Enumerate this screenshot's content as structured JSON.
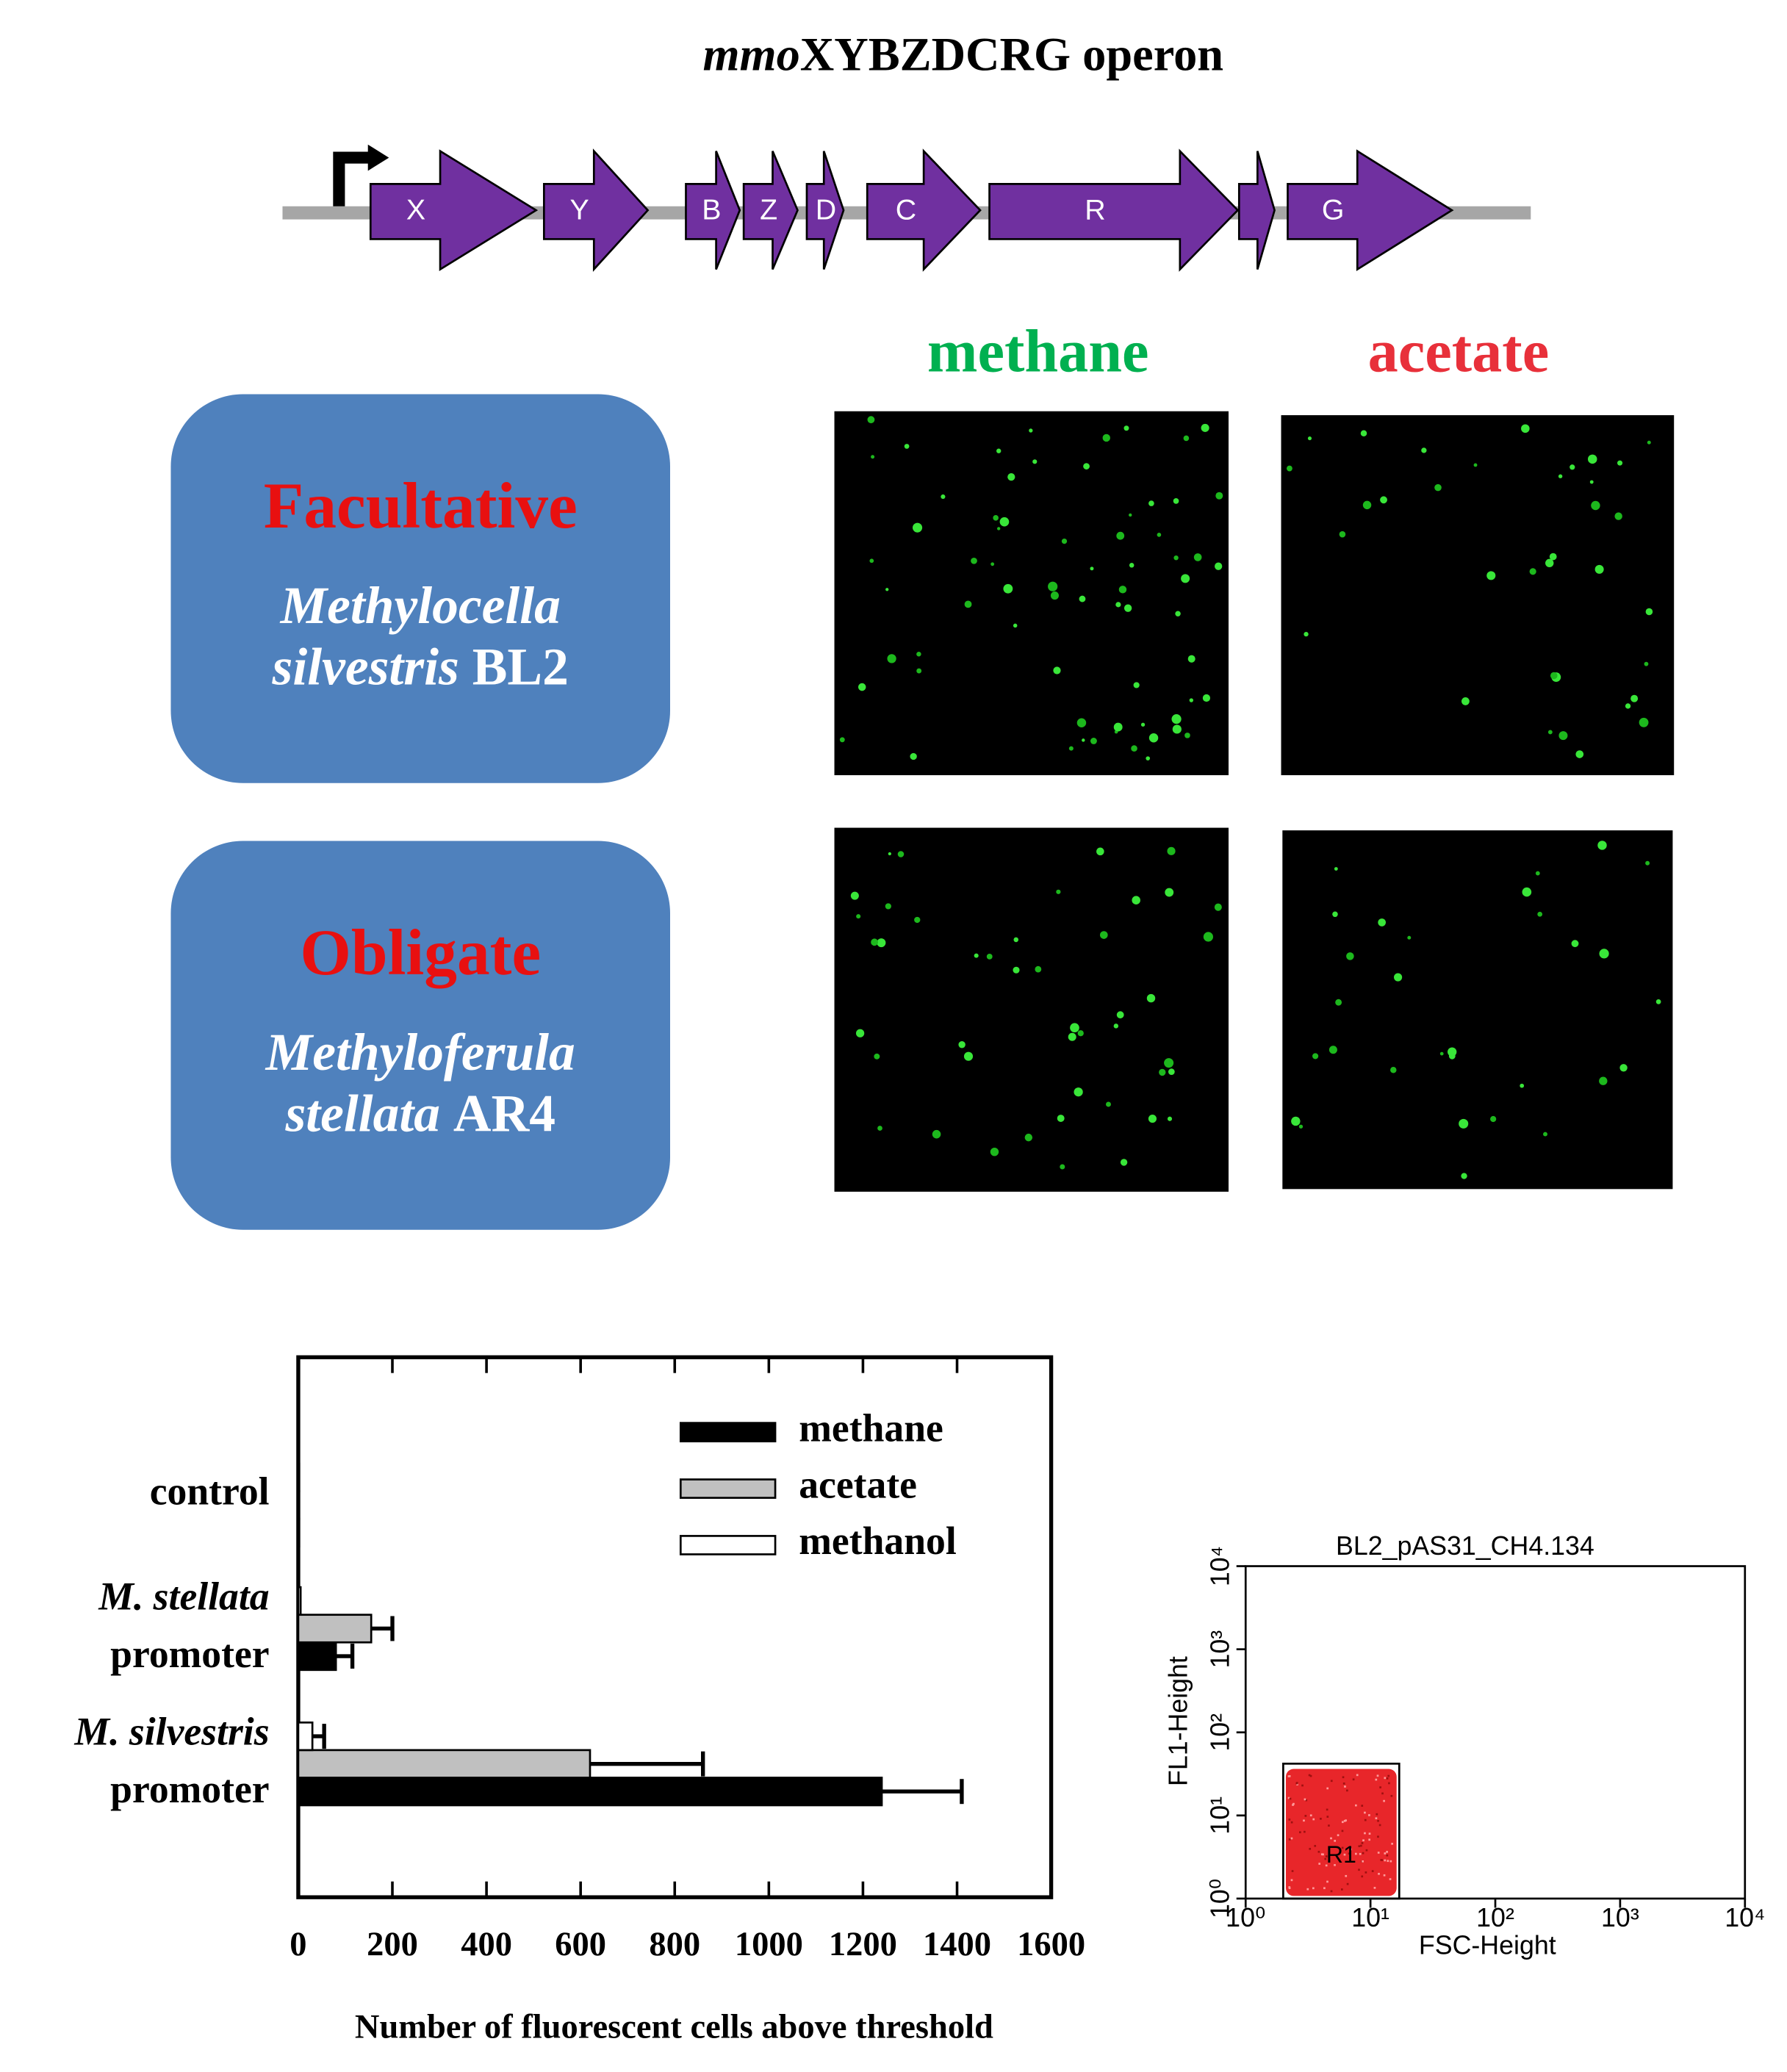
{
  "operon": {
    "title_italic": "mmo",
    "title": "XYBZDCRG operon",
    "genes": [
      "X",
      "Y",
      "B",
      "Z",
      "D",
      "C",
      "R",
      "G"
    ]
  },
  "conditions": [
    "methane",
    "acetate"
  ],
  "strains": [
    {
      "type": "Facultative",
      "genus": "Methylocella",
      "species": "silvestris",
      "strain": "BL2"
    },
    {
      "type": "Obligate",
      "genus": "Methyloferula",
      "species": "stellata",
      "strain": "AR4"
    }
  ],
  "chart_data": [
    {
      "type": "bar",
      "orientation": "horizontal",
      "categories": [
        [
          "control"
        ],
        [
          "M. stellata",
          "promoter"
        ],
        [
          "M. silvestris",
          "promoter"
        ]
      ],
      "series": [
        {
          "name": "methane",
          "color": "#000000",
          "values": [
            2,
            80,
            1240
          ],
          "errors": [
            null,
            35,
            170
          ]
        },
        {
          "name": "acetate",
          "color": "#c0c0c0",
          "values": [
            2,
            155,
            620
          ],
          "errors": [
            null,
            45,
            240
          ]
        },
        {
          "name": "methanol",
          "color": "#ffffff",
          "values": [
            2,
            5,
            30
          ],
          "errors": [
            null,
            null,
            25
          ]
        }
      ],
      "xlim": [
        0,
        1600
      ],
      "xticks": [
        0,
        200,
        400,
        600,
        800,
        1000,
        1200,
        1400,
        1600
      ],
      "xlabel": "Number of fluorescent cells above threshold",
      "legend": "top-right"
    },
    {
      "type": "scatter",
      "title": "BL2_pAS31_CH4.134",
      "xlabel": "FSC-Height",
      "ylabel": "FL1-Height",
      "x_log": true,
      "y_log": true,
      "xlim": [
        1,
        10000
      ],
      "ylim": [
        1,
        10000
      ],
      "xticks": [
        {
          "value": 1,
          "label": "10⁰"
        },
        {
          "value": 10,
          "label": "10¹"
        },
        {
          "value": 100,
          "label": "10²"
        },
        {
          "value": 1000,
          "label": "10³"
        },
        {
          "value": 10000,
          "label": "10⁴"
        }
      ],
      "yticks": [
        {
          "value": 1,
          "label": "10⁰"
        },
        {
          "value": 10,
          "label": "10¹"
        },
        {
          "value": 100,
          "label": "10²"
        },
        {
          "value": 1000,
          "label": "10³"
        },
        {
          "value": 10000,
          "label": "10⁴"
        }
      ],
      "gates": [
        {
          "name": "R1",
          "x": [
            2,
            17
          ],
          "y": [
            1,
            42
          ],
          "color": "#e8262a"
        }
      ]
    }
  ]
}
